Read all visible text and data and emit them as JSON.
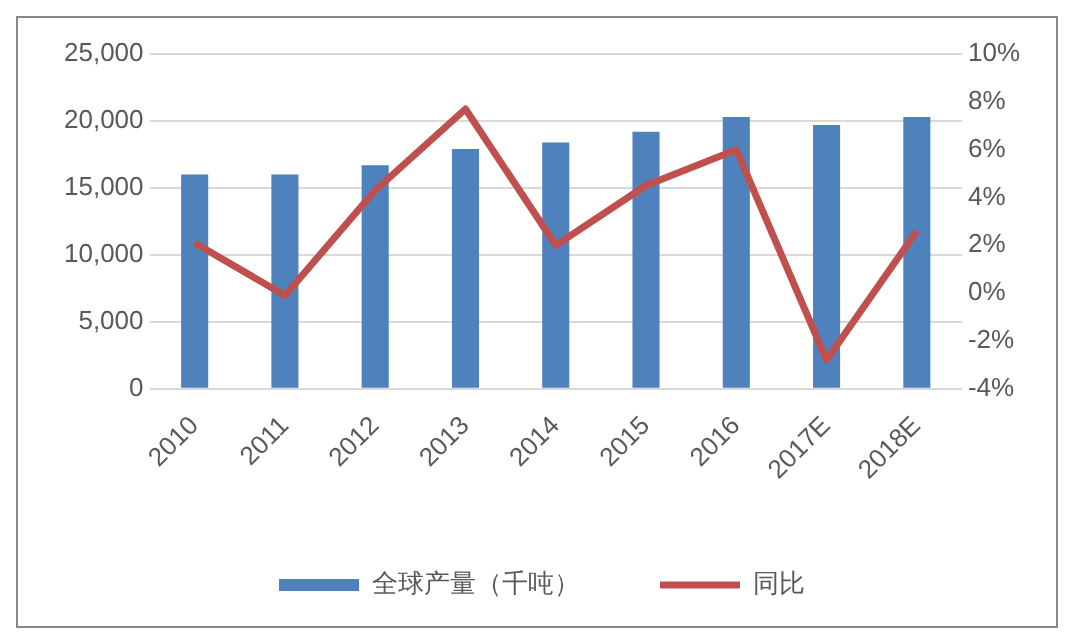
{
  "chart_data": {
    "type": "bar",
    "categories": [
      "2010",
      "2011",
      "2012",
      "2013",
      "2014",
      "2015",
      "2016",
      "2017E",
      "2018E"
    ],
    "series": [
      {
        "name": "全球产量（千吨）",
        "color": "#4f81bd",
        "values": [
          16000,
          16000,
          16700,
          17900,
          18400,
          19200,
          20300,
          19700,
          20300
        ]
      },
      {
        "name": "同比",
        "type": "line",
        "axis": "y2",
        "color": "#c0504d",
        "values": [
          2.1,
          -0.1,
          4.3,
          7.7,
          2.0,
          4.5,
          6.0,
          -2.8,
          2.6
        ]
      }
    ],
    "ylim": [
      0,
      25000
    ],
    "yticks": [
      {
        "value": 0,
        "label": "0"
      },
      {
        "value": 5000,
        "label": "5,000"
      },
      {
        "value": 10000,
        "label": "10,000"
      },
      {
        "value": 15000,
        "label": "15,000"
      },
      {
        "value": 20000,
        "label": "20,000"
      },
      {
        "value": 25000,
        "label": "25,000"
      }
    ],
    "y2lim": [
      -4,
      10
    ],
    "y2ticks": [
      {
        "value": -4,
        "label": "-4%"
      },
      {
        "value": -2,
        "label": "-2%"
      },
      {
        "value": 0,
        "label": "0%"
      },
      {
        "value": 2,
        "label": "2%"
      },
      {
        "value": 4,
        "label": "4%"
      },
      {
        "value": 6,
        "label": "6%"
      },
      {
        "value": 8,
        "label": "8%"
      },
      {
        "value": 10,
        "label": "10%"
      }
    ],
    "grid": "y",
    "legend": "bottom",
    "marker": "none",
    "line_style": "solid"
  }
}
